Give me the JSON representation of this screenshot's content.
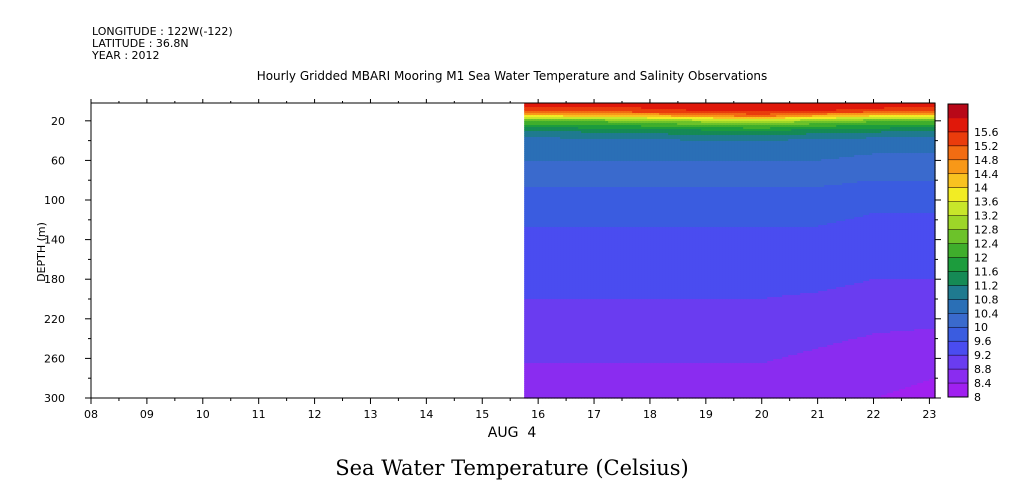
{
  "header": {
    "longitude": "LONGITUDE : 122W(-122)",
    "latitude": "LATITUDE : 36.8N",
    "year": "YEAR : 2012"
  },
  "chart_data": {
    "type": "heatmap",
    "title": "Hourly Gridded MBARI Mooring M1 Sea Water Temperature and Salinity Observations",
    "xlabel": "AUG  4",
    "ylabel": "DEPTH (m)",
    "caption": "Sea Water Temperature (Celsius)",
    "x_ticks": [
      "08",
      "09",
      "10",
      "11",
      "12",
      "13",
      "14",
      "15",
      "16",
      "17",
      "18",
      "19",
      "20",
      "21",
      "22",
      "23"
    ],
    "x_range": [
      8,
      23.1
    ],
    "y_ticks": [
      20,
      60,
      100,
      140,
      180,
      220,
      260,
      300
    ],
    "y_range": [
      2,
      300
    ],
    "y_inverted": true,
    "data_x_start": 15.75,
    "colorbar": {
      "levels": [
        8,
        8.4,
        8.8,
        9.2,
        9.6,
        10,
        10.4,
        10.8,
        11.2,
        11.6,
        12,
        12.4,
        12.8,
        13.2,
        13.6,
        14,
        14.4,
        14.8,
        15.2,
        15.6
      ],
      "colors": [
        "#a020f0",
        "#8a2cf0",
        "#6a3cf0",
        "#4a4cf0",
        "#3a5ce0",
        "#3a6acd",
        "#2a6fb6",
        "#1f7a8f",
        "#158a55",
        "#1c9c3d",
        "#3fae2c",
        "#6cc22a",
        "#9dd628",
        "#c8e62a",
        "#f2ec24",
        "#f8c220",
        "#f89818",
        "#f26c12",
        "#ea3c0c",
        "#e0180a",
        "#b80818"
      ],
      "top_color": "#b80818"
    },
    "columns": {
      "x": [
        15.75,
        16,
        17,
        18,
        19,
        20,
        21,
        22,
        23.1
      ],
      "depth": [
        2,
        10,
        15,
        20,
        30,
        40,
        60,
        80,
        100,
        140,
        180,
        220,
        250,
        280,
        300
      ],
      "temperature": [
        [
          15.4,
          15.0,
          13.6,
          12.0,
          10.8,
          10.2,
          10.0,
          9.7,
          9.4,
          9.1,
          8.9,
          8.7,
          8.5,
          8.3,
          8.2
        ],
        [
          15.4,
          15.0,
          13.6,
          12.0,
          10.8,
          10.2,
          10.0,
          9.7,
          9.4,
          9.1,
          8.9,
          8.7,
          8.5,
          8.3,
          8.2
        ],
        [
          15.4,
          15.0,
          13.7,
          12.1,
          10.9,
          10.3,
          10.0,
          9.7,
          9.4,
          9.1,
          8.9,
          8.7,
          8.5,
          8.3,
          8.2
        ],
        [
          15.4,
          15.1,
          13.9,
          12.3,
          11.0,
          10.3,
          10.0,
          9.7,
          9.4,
          9.1,
          8.9,
          8.7,
          8.5,
          8.3,
          8.2
        ],
        [
          15.5,
          15.2,
          14.3,
          12.6,
          11.1,
          10.4,
          10.0,
          9.7,
          9.4,
          9.1,
          8.9,
          8.7,
          8.5,
          8.3,
          8.2
        ],
        [
          15.5,
          15.3,
          14.6,
          12.8,
          11.2,
          10.4,
          10.0,
          9.7,
          9.4,
          9.1,
          8.9,
          8.7,
          8.5,
          8.3,
          8.2
        ],
        [
          15.5,
          15.2,
          14.0,
          12.4,
          11.0,
          10.3,
          10.0,
          9.7,
          9.4,
          9.1,
          8.9,
          8.6,
          8.4,
          8.2,
          8.1
        ],
        [
          15.4,
          15.1,
          13.6,
          12.1,
          10.9,
          10.2,
          9.9,
          9.6,
          9.3,
          9.0,
          8.8,
          8.5,
          8.3,
          8.1,
          8.0
        ],
        [
          15.4,
          15.0,
          13.4,
          12.0,
          10.8,
          10.2,
          9.9,
          9.6,
          9.3,
          9.0,
          8.8,
          8.5,
          8.2,
          8.0,
          7.9
        ]
      ]
    }
  }
}
